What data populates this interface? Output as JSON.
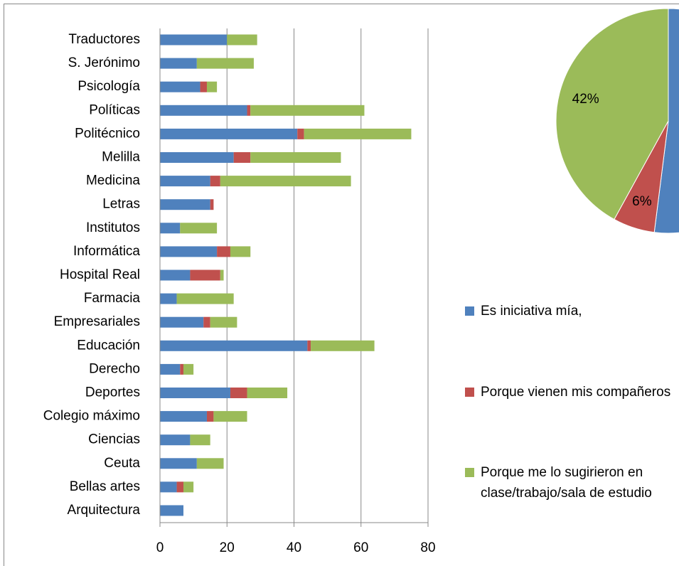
{
  "chart_data": [
    {
      "type": "bar",
      "orientation": "horizontal",
      "stacked": true,
      "grid": true,
      "categories": [
        "Traductores",
        "S. Jerónimo",
        "Psicología",
        "Políticas",
        "Politécnico",
        "Melilla",
        "Medicina",
        "Letras",
        "Institutos",
        "Informática",
        "Hospital Real",
        "Farmacia",
        "Empresariales",
        "Educación",
        "Derecho",
        "Deportes",
        "Colegio máximo",
        "Ciencias",
        "Ceuta",
        "Bellas artes",
        "Arquitectura"
      ],
      "series": [
        {
          "name": "Es iniciativa mía,",
          "color": "#4f81bd",
          "values": [
            20,
            11,
            12,
            26,
            41,
            22,
            15,
            15,
            6,
            17,
            9,
            5,
            13,
            44,
            6,
            21,
            14,
            9,
            11,
            5,
            7
          ]
        },
        {
          "name": "Porque vienen mis compañeros",
          "color": "#c0504d",
          "values": [
            0,
            0,
            2,
            1,
            2,
            5,
            3,
            1,
            0,
            4,
            9,
            0,
            2,
            1,
            1,
            5,
            2,
            0,
            0,
            2,
            0
          ]
        },
        {
          "name": "Porque me lo sugirieron en clase/trabajo/sala de estudio",
          "color": "#9bbb59",
          "values": [
            9,
            17,
            3,
            34,
            32,
            27,
            39,
            0,
            11,
            6,
            1,
            17,
            8,
            19,
            3,
            12,
            10,
            6,
            8,
            3,
            0
          ]
        }
      ],
      "xlim": [
        0,
        80
      ],
      "xticks": [
        0,
        20,
        40,
        60,
        80
      ]
    },
    {
      "type": "pie",
      "values": [
        52,
        6,
        42
      ],
      "value_labels": [
        null,
        "6%",
        "42%"
      ],
      "colors": [
        "#4f81bd",
        "#c0504d",
        "#9bbb59"
      ]
    }
  ]
}
